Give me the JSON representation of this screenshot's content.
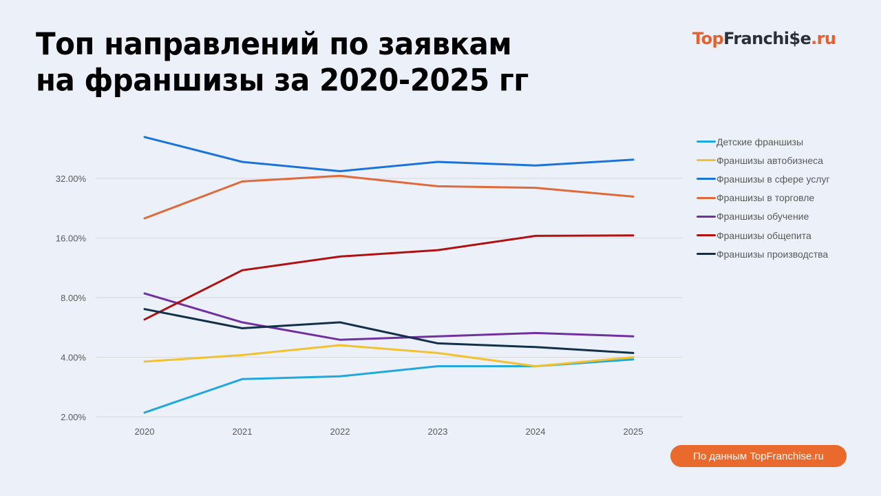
{
  "header": {
    "title_line1": "Топ направлений по заявкам",
    "title_line2": "на франшизы за 2020-2025 гг",
    "logo_top": "Top",
    "logo_rest": "Franchi$e",
    "logo_dot": ".ru"
  },
  "footer": {
    "source_label": "По данным TopFranchise.ru"
  },
  "colors": {
    "background": "#ECF0F9",
    "accent": "#EA6A2E",
    "gridline": "#D9D9D9"
  },
  "chart_data": {
    "type": "line",
    "title": "Топ направлений по заявкам на франшизы за 2020-2025 гг",
    "xlabel": "",
    "ylabel": "",
    "y_scale": "log2",
    "ylim": [
      2,
      64
    ],
    "y_ticks": [
      "2.00%",
      "4.00%",
      "8.00%",
      "16.00%",
      "32.00%"
    ],
    "y_tick_values": [
      2,
      4,
      8,
      16,
      32
    ],
    "grid": true,
    "legend_position": "right",
    "categories": [
      "2020",
      "2021",
      "2022",
      "2023",
      "2024",
      "2025"
    ],
    "series": [
      {
        "name": "Детские франшизы",
        "color": "#1FA8DC",
        "values": [
          2.1,
          3.1,
          3.2,
          3.6,
          3.6,
          3.9
        ]
      },
      {
        "name": "Франшизы автобизнеса",
        "color": "#F2C12E",
        "values": [
          3.8,
          4.1,
          4.6,
          4.2,
          3.6,
          4.0
        ]
      },
      {
        "name": "Франшизы в сфере услуг",
        "color": "#1A73D9",
        "values": [
          51.8,
          38.8,
          34.8,
          38.8,
          37.2,
          39.8
        ]
      },
      {
        "name": "Франшизы в торговле",
        "color": "#E0693A",
        "values": [
          20.1,
          30.9,
          33.0,
          29.2,
          28.7,
          25.9
        ]
      },
      {
        "name": "Франшизы обучение",
        "color": "#7030A0",
        "values": [
          8.4,
          6.0,
          4.9,
          5.1,
          5.3,
          5.1
        ]
      },
      {
        "name": "Франшизы общепита",
        "color": "#B01010",
        "values": [
          6.2,
          11.0,
          12.9,
          13.9,
          16.4,
          16.5
        ]
      },
      {
        "name": "Франшизы производства",
        "color": "#12304A",
        "values": [
          7.0,
          5.6,
          6.0,
          4.7,
          4.5,
          4.2
        ]
      }
    ]
  }
}
